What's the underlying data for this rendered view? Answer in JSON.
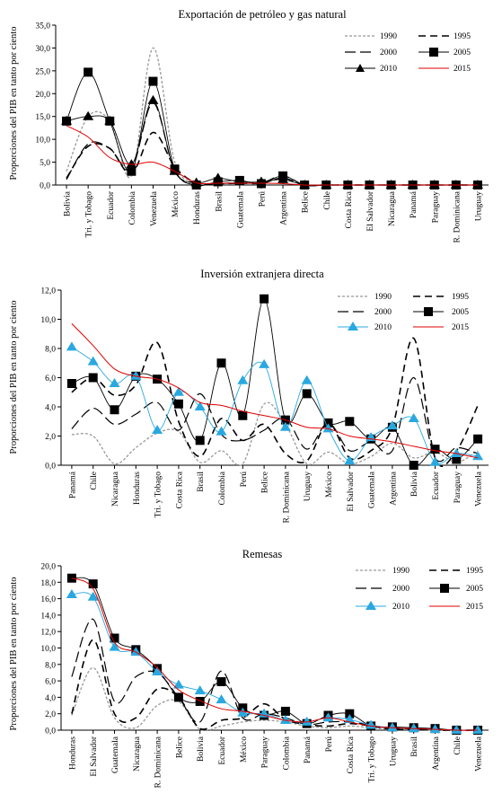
{
  "charts": [
    {
      "type": "line",
      "title": "Exportación de petróleo y gas natural",
      "ylabel": "Proporciones del PIB en tanto por ciento",
      "ylim": [
        0,
        35
      ],
      "ytick_labels": [
        "0,0",
        "5,0",
        "10,0",
        "15,0",
        "20,0",
        "25,0",
        "30,0",
        "35,0"
      ],
      "categories": [
        "Bolivia",
        "Tri. y Tobago",
        "Ecuador",
        "Colombia",
        "Venezuela",
        "México",
        "Honduras",
        "Brasil",
        "Guatemala",
        "Perú",
        "Argentina",
        "Belice",
        "Chile",
        "Costa Rica",
        "El Salvador",
        "Nicaragua",
        "Panamá",
        "Paraguay",
        "R. Dominicana",
        "Uruguay"
      ],
      "legend_labels": [
        "1990",
        "1995",
        "2000",
        "2005",
        "2010",
        "2015"
      ],
      "series": [
        {
          "name": "1990",
          "values": [
            3.0,
            15.0,
            14.0,
            2.0,
            30.0,
            5.0,
            0.5,
            0.3,
            0.5,
            0.3,
            1.5,
            0,
            0,
            0,
            0,
            0,
            0,
            0,
            0,
            0
          ]
        },
        {
          "name": "1995",
          "values": [
            1.5,
            8.5,
            8.0,
            2.5,
            11.5,
            4.0,
            0.4,
            0.3,
            0.4,
            0.4,
            1.5,
            0,
            0,
            0,
            0,
            0,
            0,
            0,
            0,
            0
          ]
        },
        {
          "name": "2000",
          "values": [
            1.2,
            9.0,
            8.0,
            3.5,
            18.0,
            3.0,
            0.5,
            0.3,
            0.6,
            0.5,
            2.0,
            0,
            0,
            0,
            0,
            0,
            0,
            0,
            0,
            0
          ]
        },
        {
          "name": "2005",
          "values": [
            14.0,
            24.7,
            14.0,
            3.0,
            22.7,
            3.5,
            0.0,
            0.7,
            1.0,
            0.3,
            2.0,
            0,
            0,
            0,
            0,
            0,
            0,
            0,
            0,
            0
          ]
        },
        {
          "name": "2010",
          "values": [
            14.0,
            15.0,
            14.0,
            4.5,
            18.5,
            3.0,
            0.5,
            1.5,
            0.7,
            0.7,
            1.2,
            0,
            0,
            0,
            0,
            0,
            0,
            0,
            0,
            0
          ]
        },
        {
          "name": "2015",
          "values": [
            13.0,
            10.5,
            6.0,
            4.5,
            5.0,
            3.0,
            0.5,
            0.4,
            0.4,
            0.4,
            0.3,
            0,
            0,
            0,
            0,
            0,
            0,
            0,
            0,
            0
          ]
        }
      ]
    },
    {
      "type": "line",
      "title": "Inversión extranjera directa",
      "ylabel": "Proporciones del PIB en tanto por ciento",
      "ylim": [
        0,
        12
      ],
      "ytick_labels": [
        "0,0",
        "2,0",
        "4,0",
        "6,0",
        "8,0",
        "10,0",
        "12,0"
      ],
      "categories": [
        "Panamá",
        "Chile",
        "Nicaragua",
        "Honduras",
        "Tri. y Tobago",
        "Costa Rica",
        "Brasil",
        "Colombia",
        "Perú",
        "Belice",
        "R. Dominicana",
        "Uruguay",
        "México",
        "El Salvador",
        "Guatemala",
        "Argentina",
        "Bolivia",
        "Ecuador",
        "Paraguay",
        "Venezuela"
      ],
      "legend_labels": [
        "1990",
        "1995",
        "2000",
        "2005",
        "2010",
        "2015"
      ],
      "series": [
        {
          "name": "1990",
          "values": [
            2.1,
            2.0,
            0.1,
            1.2,
            2.2,
            2.3,
            0.2,
            1.0,
            0.1,
            4.2,
            2.8,
            0.1,
            0.9,
            0.1,
            0.6,
            1.5,
            0.5,
            0.9,
            0.2,
            1.0
          ]
        },
        {
          "name": "1995",
          "values": [
            5.0,
            6.0,
            4.8,
            5.5,
            8.4,
            3.0,
            0.6,
            3.2,
            1.7,
            2.8,
            0.8,
            0.3,
            2.9,
            0.5,
            1.0,
            2.6,
            8.7,
            0.5,
            1.0,
            4.1
          ]
        },
        {
          "name": "2000",
          "values": [
            2.5,
            3.9,
            2.8,
            3.5,
            4.3,
            2.4,
            4.9,
            2.1,
            1.7,
            2.4,
            3.2,
            1.1,
            2.9,
            1.0,
            1.6,
            1.0,
            6.0,
            0.5,
            1.2,
            0.8
          ]
        },
        {
          "name": "2005",
          "values": [
            5.6,
            6.0,
            3.8,
            6.1,
            5.9,
            4.2,
            1.7,
            7.0,
            3.4,
            11.4,
            3.1,
            4.9,
            2.9,
            3.0,
            1.8,
            2.6,
            0.0,
            1.1,
            0.4,
            1.8
          ]
        },
        {
          "name": "2010",
          "values": [
            8.1,
            7.1,
            5.6,
            6.1,
            2.4,
            5.0,
            4.0,
            2.3,
            5.8,
            6.9,
            2.6,
            5.8,
            2.5,
            0.3,
            1.9,
            2.7,
            3.2,
            0.2,
            0.8,
            0.6
          ]
        },
        {
          "name": "2015",
          "values": [
            9.7,
            8.2,
            6.6,
            6.1,
            5.9,
            5.3,
            4.3,
            4.1,
            3.7,
            3.4,
            3.1,
            2.6,
            2.5,
            2.0,
            1.8,
            1.6,
            1.3,
            1.0,
            0.8,
            0.5
          ]
        }
      ]
    },
    {
      "type": "line",
      "title": "Remesas",
      "ylabel": "Proporciones del PIB en tanto por ciento",
      "ylim": [
        0,
        20
      ],
      "ytick_labels": [
        "0,0",
        "2,0",
        "4,0",
        "6,0",
        "8,0",
        "10,0",
        "12,0",
        "14,0",
        "16,0",
        "18,0",
        "20,0"
      ],
      "categories": [
        "Honduras",
        "El Salvador",
        "Guatemala",
        "Nicaragua",
        "R. Dominicana",
        "Belice",
        "Bolivia",
        "Ecuador",
        "México",
        "Paraguay",
        "Colombia",
        "Panamá",
        "Perú",
        "Costa Rica",
        "Tri. y Tobago",
        "Uruguay",
        "Brasil",
        "Argentina",
        "Chile",
        "Venezuela"
      ],
      "legend_labels": [
        "1990",
        "1995",
        "2000",
        "2005",
        "2010",
        "2015"
      ],
      "series": [
        {
          "name": "1990",
          "values": [
            1.8,
            7.6,
            1.5,
            0.3,
            3.0,
            3.5,
            0.1,
            0.5,
            1.0,
            1.2,
            1.0,
            0.5,
            0.3,
            0.5,
            0.3,
            0.1,
            0.1,
            0.0,
            0.0,
            0.0
          ]
        },
        {
          "name": "1995",
          "values": [
            2.0,
            11.0,
            2.0,
            1.5,
            5.0,
            4.0,
            0.2,
            1.2,
            1.5,
            3.2,
            1.3,
            0.7,
            0.5,
            0.8,
            0.5,
            0.1,
            0.1,
            0.0,
            0.0,
            0.0
          ]
        },
        {
          "name": "2000",
          "values": [
            6.5,
            13.5,
            3.5,
            6.5,
            7.0,
            4.0,
            1.0,
            7.2,
            1.5,
            2.0,
            1.5,
            0.7,
            1.0,
            1.0,
            0.6,
            0.2,
            0.2,
            0.1,
            0.0,
            0.0
          ]
        },
        {
          "name": "2005",
          "values": [
            18.5,
            17.8,
            11.2,
            9.8,
            7.5,
            4.0,
            3.5,
            5.9,
            2.7,
            1.8,
            2.3,
            0.8,
            1.8,
            2.0,
            0.5,
            0.4,
            0.3,
            0.2,
            0.0,
            0.0
          ]
        },
        {
          "name": "2010",
          "values": [
            16.5,
            16.2,
            10.1,
            9.5,
            7.1,
            5.5,
            4.8,
            3.7,
            2.1,
            2.0,
            1.2,
            1.0,
            1.5,
            1.3,
            0.6,
            0.3,
            0.2,
            0.1,
            0.0,
            0.0
          ]
        },
        {
          "name": "2015",
          "values": [
            18.5,
            17.2,
            10.7,
            9.5,
            7.6,
            4.9,
            3.6,
            2.6,
            2.3,
            1.8,
            1.2,
            1.0,
            1.5,
            1.0,
            0.5,
            0.3,
            0.2,
            0.1,
            0.0,
            0.0
          ]
        }
      ]
    }
  ]
}
